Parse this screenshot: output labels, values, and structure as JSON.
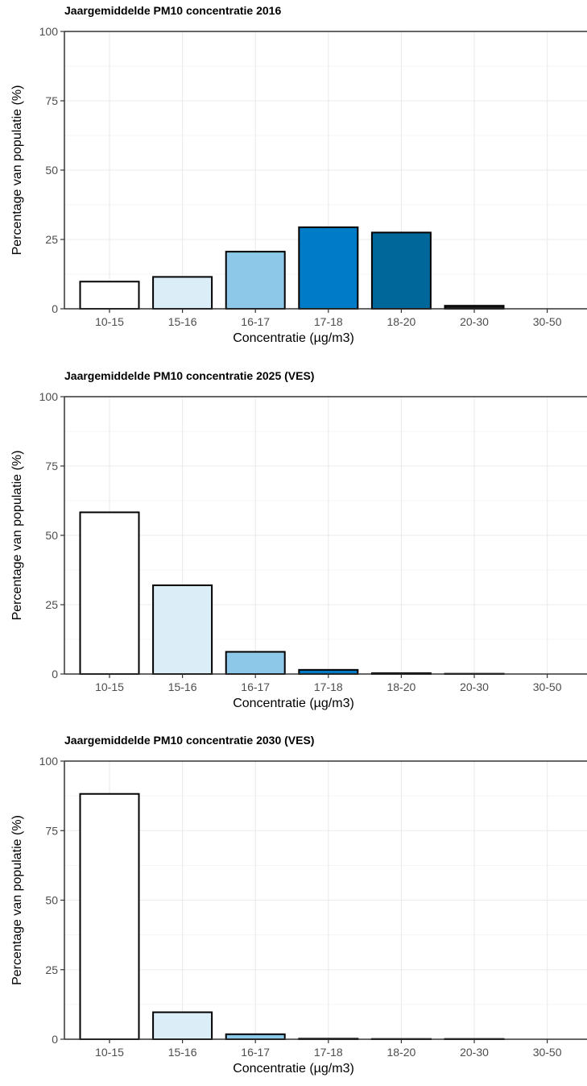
{
  "chart_data": [
    {
      "type": "bar",
      "title": "Jaargemiddelde PM10 concentratie 2016",
      "xlabel": "Concentratie (µg/m3)",
      "ylabel": "Percentage van populatie (%)",
      "categories": [
        "10-15",
        "15-16",
        "16-17",
        "17-18",
        "18-20",
        "20-30",
        "30-50"
      ],
      "values": [
        9.8,
        11.5,
        20.6,
        29.4,
        27.5,
        1.1,
        0.0
      ],
      "ylim": [
        0,
        100
      ],
      "yticks": [
        "0",
        "25",
        "50",
        "75",
        "100"
      ],
      "grid": true,
      "legend": "none"
    },
    {
      "type": "bar",
      "title": "Jaargemiddelde PM10 concentratie 2025 (VES)",
      "xlabel": "Concentratie (µg/m3)",
      "ylabel": "Percentage van populatie (%)",
      "categories": [
        "10-15",
        "15-16",
        "16-17",
        "17-18",
        "18-20",
        "20-30",
        "30-50"
      ],
      "values": [
        58.3,
        32.0,
        8.0,
        1.5,
        0.3,
        0.1,
        0.0
      ],
      "ylim": [
        0,
        100
      ],
      "yticks": [
        "0",
        "25",
        "50",
        "75",
        "100"
      ],
      "grid": true,
      "legend": "none"
    },
    {
      "type": "bar",
      "title": "Jaargemiddelde PM10 concentratie 2030 (VES)",
      "xlabel": "Concentratie (µg/m3)",
      "ylabel": "Percentage van populatie (%)",
      "categories": [
        "10-15",
        "15-16",
        "16-17",
        "17-18",
        "18-20",
        "20-30",
        "30-50"
      ],
      "values": [
        88.2,
        9.7,
        1.8,
        0.2,
        0.1,
        0.1,
        0.0
      ],
      "ylim": [
        0,
        100
      ],
      "yticks": [
        "0",
        "25",
        "50",
        "75",
        "100"
      ],
      "grid": true,
      "legend": "none"
    }
  ],
  "colors": {
    "10-15": "#ffffff",
    "15-16": "#dbeef8",
    "16-17": "#8ec8e8",
    "17-18": "#007bc8",
    "18-20": "#00679a",
    "20-30": "#1a1a1a",
    "30-50": "#000000",
    "grid": "#ebebeb",
    "axis": "#333333",
    "text": "#4d4d4d"
  }
}
